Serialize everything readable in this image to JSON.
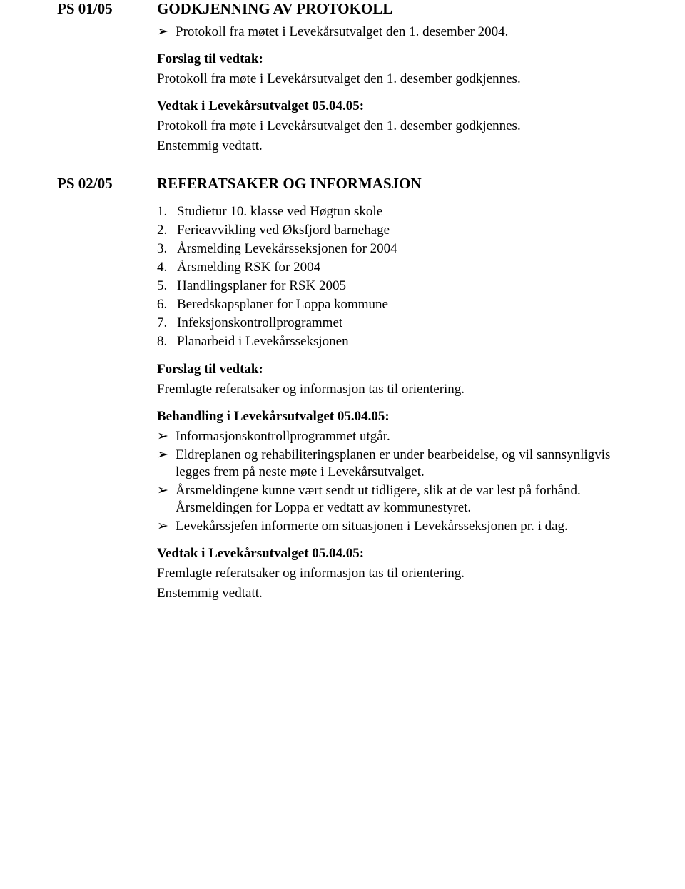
{
  "section1": {
    "caseId": "PS 01/05",
    "title": "GODKJENNING AV PROTOKOLL",
    "bullet1": "Protokoll fra møtet i Levekårsutvalget den 1. desember 2004.",
    "forslagLabel": "Forslag til vedtak:",
    "forslagText": "Protokoll fra møte i Levekårsutvalget den 1. desember godkjennes.",
    "vedtakLabel": "Vedtak i Levekårsutvalget 05.04.05:",
    "vedtakText1": "Protokoll fra møte i Levekårsutvalget den 1. desember godkjennes.",
    "vedtakText2": "Enstemmig vedtatt."
  },
  "section2": {
    "caseId": "PS 02/05",
    "title": "REFERATSAKER OG INFORMASJON",
    "items": [
      "Studietur 10. klasse ved Høgtun skole",
      "Ferieavvikling ved Øksfjord barnehage",
      "Årsmelding Levekårsseksjonen for 2004",
      "Årsmelding RSK for 2004",
      "Handlingsplaner for RSK 2005",
      "Beredskapsplaner for Loppa kommune",
      "Infeksjonskontrollprogrammet",
      "Planarbeid i Levekårsseksjonen"
    ],
    "forslagLabel": "Forslag til vedtak:",
    "forslagText": "Fremlagte referatsaker og informasjon tas til orientering.",
    "behandlingLabel": "Behandling i Levekårsutvalget 05.04.05:",
    "behandlingBullets": [
      "Informasjonskontrollprogrammet utgår.",
      "Eldreplanen og rehabiliteringsplanen er under bearbeidelse, og vil sannsynligvis legges frem på neste møte i Levekårsutvalget.",
      "Årsmeldingene kunne vært sendt ut tidligere, slik at de var lest på forhånd. Årsmeldingen for Loppa er vedtatt av kommunestyret.",
      "Levekårssjefen informerte om situasjonen i Levekårsseksjonen pr. i dag."
    ],
    "vedtakLabel": "Vedtak i Levekårsutvalget 05.04.05:",
    "vedtakText1": "Fremlagte referatsaker og informasjon tas til orientering.",
    "vedtakText2": "Enstemmig vedtatt."
  }
}
